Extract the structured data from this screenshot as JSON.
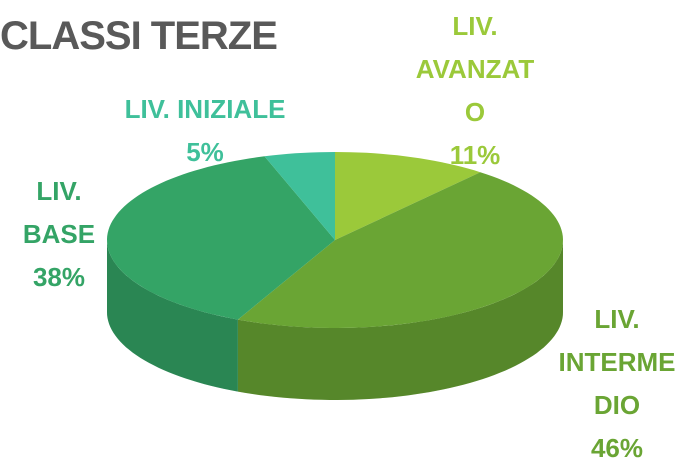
{
  "chart_data": {
    "type": "pie",
    "title": "CLASSI TERZE",
    "categories": [
      "LIV. AVANZATO",
      "LIV. INTERMEDIO",
      "LIV. BASE",
      "LIV. INIZIALE"
    ],
    "values": [
      11,
      46,
      38,
      5
    ],
    "value_labels": [
      "11%",
      "46%",
      "38%",
      "5%"
    ],
    "colors": [
      "#9bc93a",
      "#6aa534",
      "#34a466",
      "#3fc09a"
    ]
  }
}
